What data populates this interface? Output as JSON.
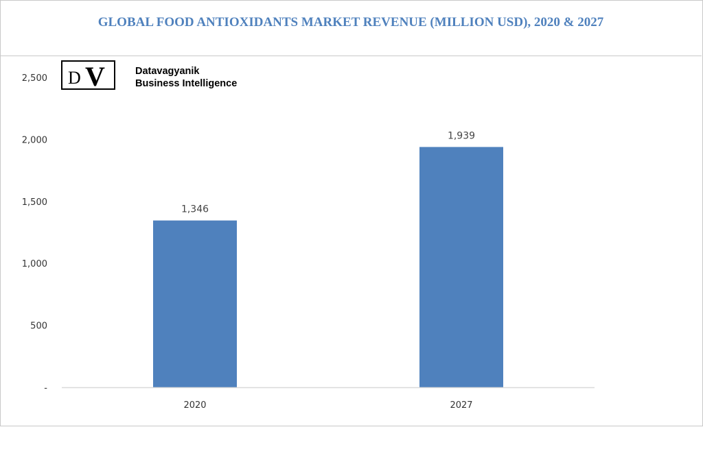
{
  "chart_data": {
    "type": "bar",
    "title": "GLOBAL FOOD ANTIOXIDANTS MARKET REVENUE (MILLION USD), 2020 & 2027",
    "categories": [
      "2020",
      "2027"
    ],
    "values": [
      1346,
      1939
    ],
    "data_labels": [
      "1,346",
      "1,939"
    ],
    "xlabel": "",
    "ylabel": "",
    "ylim": [
      0,
      2500
    ],
    "yticks": [
      0,
      500,
      1000,
      1500,
      2000,
      2500
    ],
    "ytick_labels": [
      "-",
      "500",
      "1,000",
      "1,500",
      "2,000",
      "2,500"
    ],
    "grid": false,
    "legend": "none",
    "bar_color": "#4f81bd"
  },
  "logo": {
    "mark": "DV",
    "line1": "Datavagyanik",
    "line2": "Business Intelligence"
  }
}
